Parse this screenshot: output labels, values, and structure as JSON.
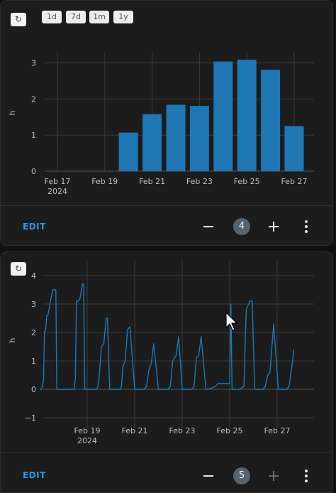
{
  "card1": {
    "reset_icon": "reset-icon",
    "range_buttons": [
      "1d",
      "7d",
      "1m",
      "1y"
    ],
    "edit_label": "EDIT",
    "counter": "4",
    "chart_data": {
      "type": "bar",
      "ylabel": "h",
      "ylim": [
        0,
        3.3
      ],
      "y_ticks": [
        "0",
        "1",
        "2",
        "3"
      ],
      "x_ticks": [
        "Feb 17",
        "Feb 19",
        "Feb 21",
        "Feb 23",
        "Feb 25",
        "Feb 27"
      ],
      "x_year_label": "2024",
      "categories": [
        "Feb 20",
        "Feb 21",
        "Feb 22",
        "Feb 23",
        "Feb 24",
        "Feb 25",
        "Feb 26",
        "Feb 27"
      ],
      "values": [
        1.07,
        1.58,
        1.84,
        1.81,
        3.04,
        3.09,
        2.81,
        1.25
      ],
      "color": "#1f77b4",
      "grid": true
    }
  },
  "card2": {
    "reset_icon": "reset-icon",
    "edit_label": "EDIT",
    "counter": "5",
    "chart_data": {
      "type": "line",
      "ylabel": "h",
      "ylim": [
        -1.1,
        4.3
      ],
      "y_ticks": [
        "−1",
        "0",
        "1",
        "2",
        "3",
        "4"
      ],
      "x_ticks": [
        "Feb 19",
        "Feb 21",
        "Feb 23",
        "Feb 25",
        "Feb 27"
      ],
      "x_year_label": "2024",
      "color": "#1f77b4",
      "grid": true,
      "series": [
        {
          "x": [
            17.0,
            17.08,
            17.16,
            17.2,
            17.25,
            17.3,
            17.35,
            17.45,
            17.55,
            17.62,
            17.68,
            17.72,
            17.76,
            17.8,
            17.85,
            17.95,
            18.0,
            18.1,
            18.45,
            18.5,
            18.55,
            18.62,
            18.7,
            18.8,
            18.85,
            18.9,
            19.0,
            19.05,
            19.4,
            19.45,
            19.5,
            19.6,
            19.65,
            19.7,
            19.8,
            19.85,
            19.95,
            20.0,
            20.05,
            20.4,
            20.45,
            20.5,
            20.6,
            20.7,
            20.8,
            21.0,
            21.1,
            21.15,
            21.4,
            21.5,
            21.6,
            21.7,
            21.8,
            22.0,
            22.05,
            22.1,
            22.4,
            22.5,
            22.6,
            22.75,
            22.85,
            23.0,
            23.05,
            23.1,
            23.4,
            23.5,
            23.6,
            23.7,
            23.8,
            24.0,
            24.05,
            24.1,
            24.4,
            24.5,
            24.8,
            25.0,
            25.05,
            25.1,
            25.15,
            25.4,
            25.6,
            25.7,
            25.85,
            25.95,
            26.05,
            26.1,
            26.4,
            26.5,
            26.6,
            26.7,
            26.85,
            27.05,
            27.1,
            27.15,
            27.4,
            27.5,
            27.6,
            27.65,
            27.7
          ],
          "y": [
            0,
            0,
            0.3,
            2.0,
            2.1,
            2.6,
            2.6,
            3.1,
            3.5,
            3.5,
            3.5,
            0,
            0,
            0,
            0,
            0,
            0,
            0,
            0,
            0.4,
            3.1,
            3.1,
            3.2,
            3.7,
            3.7,
            0,
            0,
            0,
            0,
            0.1,
            0.4,
            1.5,
            1.55,
            1.6,
            2.5,
            2.5,
            0,
            0,
            0,
            0,
            0.15,
            0.8,
            1.0,
            2.1,
            2.2,
            0,
            0,
            0,
            0,
            0.1,
            0.7,
            0.9,
            1.6,
            0,
            0,
            0,
            0,
            0.1,
            1.0,
            1.2,
            1.85,
            0,
            0,
            0,
            0,
            0.1,
            1.1,
            1.2,
            1.85,
            0,
            0,
            0,
            0.1,
            0.2,
            0.2,
            0.2,
            3.0,
            0,
            0,
            0,
            0.1,
            2.8,
            3.1,
            3.1,
            0,
            0,
            0,
            0.1,
            0.5,
            0.6,
            2.3,
            0,
            0,
            0,
            0,
            0.1,
            0.7,
            1.0,
            1.4
          ]
        }
      ]
    }
  }
}
